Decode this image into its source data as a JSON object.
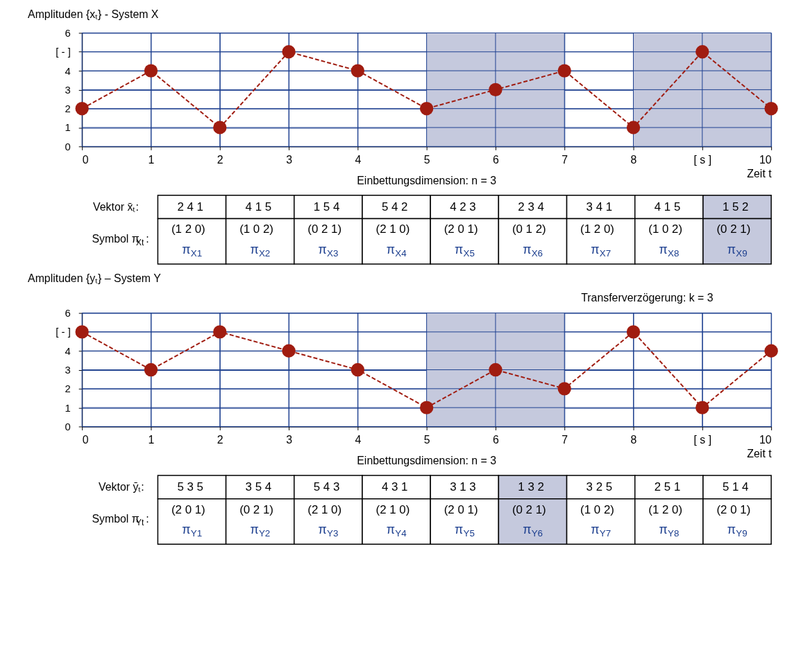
{
  "chart_data": [
    {
      "type": "line",
      "ylabel": "Amplituden {xₜ} - System X",
      "xlabel": "Zeit t",
      "x": [
        0,
        1,
        2,
        3,
        4,
        5,
        6,
        7,
        8,
        9,
        10
      ],
      "series": [
        {
          "color": "#a01c10",
          "values": [
            2,
            4,
            1,
            5,
            4,
            2,
            3,
            4,
            1,
            5,
            2
          ]
        }
      ],
      "xlim": [
        0,
        10
      ],
      "xticks": [
        0,
        1,
        2,
        3,
        4,
        5,
        6,
        7,
        8,
        {
          "value": 9,
          "label": "[ s ]"
        },
        10
      ],
      "ylim": [
        0,
        6
      ],
      "yticks": [
        0,
        1,
        2,
        3,
        4,
        {
          "value": 5,
          "label": "[ - ]"
        },
        6
      ],
      "bands": [
        {
          "axis": "x",
          "from": 5,
          "to": 7,
          "color": "#c5c9dd"
        },
        {
          "axis": "x",
          "from": 8,
          "to": 10,
          "color": "#c5c9dd"
        }
      ],
      "grid": true,
      "marker": "circle",
      "line_style": "dashed",
      "annotations": [
        "Einbettungsdimension: n = 3"
      ]
    },
    {
      "type": "other",
      "colors": [
        "#ffffff",
        "#ffffff",
        "#ffffff",
        "#ffffff",
        "#ffffff",
        "#ffffff",
        "#ffffff",
        "#ffffff",
        "#c5c9dd"
      ],
      "annotations": [
        "Vektor x̄ₜ:",
        "2 4 1",
        "4 1 5",
        "1 5 4",
        "5 4 2",
        "4 2 3",
        "2 3 4",
        "3 4 1",
        "4 1 5",
        "1 5 2",
        "Symbol π$_{Xt}$:",
        "(1 2 0)",
        "(1 0 2)",
        "(0 2 1)",
        "(2 1 0)",
        "(2 0 1)",
        "(0 1 2)",
        "(1 2 0)",
        "(1 0 2)",
        "(0 2 1)",
        "π$_{X1}$",
        "π$_{X2}$",
        "π$_{X3}$",
        "π$_{X4}$",
        "π$_{X5}$",
        "π$_{X6}$",
        "π$_{X7}$",
        "π$_{X8}$",
        "π$_{X9}$"
      ]
    },
    {
      "type": "line",
      "ylabel": "Amplituden {yₜ} – System Y",
      "xlabel": "Zeit t",
      "x": [
        0,
        1,
        2,
        3,
        4,
        5,
        6,
        7,
        8,
        9,
        10
      ],
      "series": [
        {
          "color": "#a01c10",
          "values": [
            5,
            3,
            5,
            4,
            3,
            1,
            3,
            2,
            5,
            1,
            4
          ]
        }
      ],
      "xlim": [
        0,
        10
      ],
      "xticks": [
        0,
        1,
        2,
        3,
        4,
        5,
        6,
        7,
        8,
        {
          "value": 9,
          "label": "[ s ]"
        },
        10
      ],
      "ylim": [
        0,
        6
      ],
      "yticks": [
        0,
        1,
        2,
        3,
        4,
        {
          "value": 5,
          "label": "[ - ]"
        },
        6
      ],
      "bands": [
        {
          "axis": "x",
          "from": 5,
          "to": 7,
          "color": "#c5c9dd"
        }
      ],
      "grid": true,
      "marker": "circle",
      "line_style": "dashed",
      "annotations": [
        "Einbettungsdimension: n = 3",
        "Transferverzögerung: k = 3"
      ]
    },
    {
      "type": "other",
      "colors": [
        "#ffffff",
        "#ffffff",
        "#ffffff",
        "#ffffff",
        "#ffffff",
        "#c5c9dd",
        "#ffffff",
        "#ffffff",
        "#ffffff"
      ],
      "annotations": [
        "Vektor ȳₜ:",
        "5 3 5",
        "3 5 4",
        "5 4 3",
        "4 3 1",
        "3 1 3",
        "1 3 2",
        "3 2 5",
        "2 5 1",
        "5 1 4",
        "Symbol π$_{Yt}$:",
        "(2 0 1)",
        "(0 2 1)",
        "(2 1 0)",
        "(2 1 0)",
        "(2 0 1)",
        "(0 2 1)",
        "(1 0 2)",
        "(1 2 0)",
        "(2 0 1)",
        "π$_{Y1}$",
        "π$_{Y2}$",
        "π$_{Y3}$",
        "π$_{Y4}$",
        "π$_{Y5}$",
        "π$_{Y6}$",
        "π$_{Y7}$",
        "π$_{Y8}$",
        "π$_{Y9}$"
      ]
    }
  ]
}
